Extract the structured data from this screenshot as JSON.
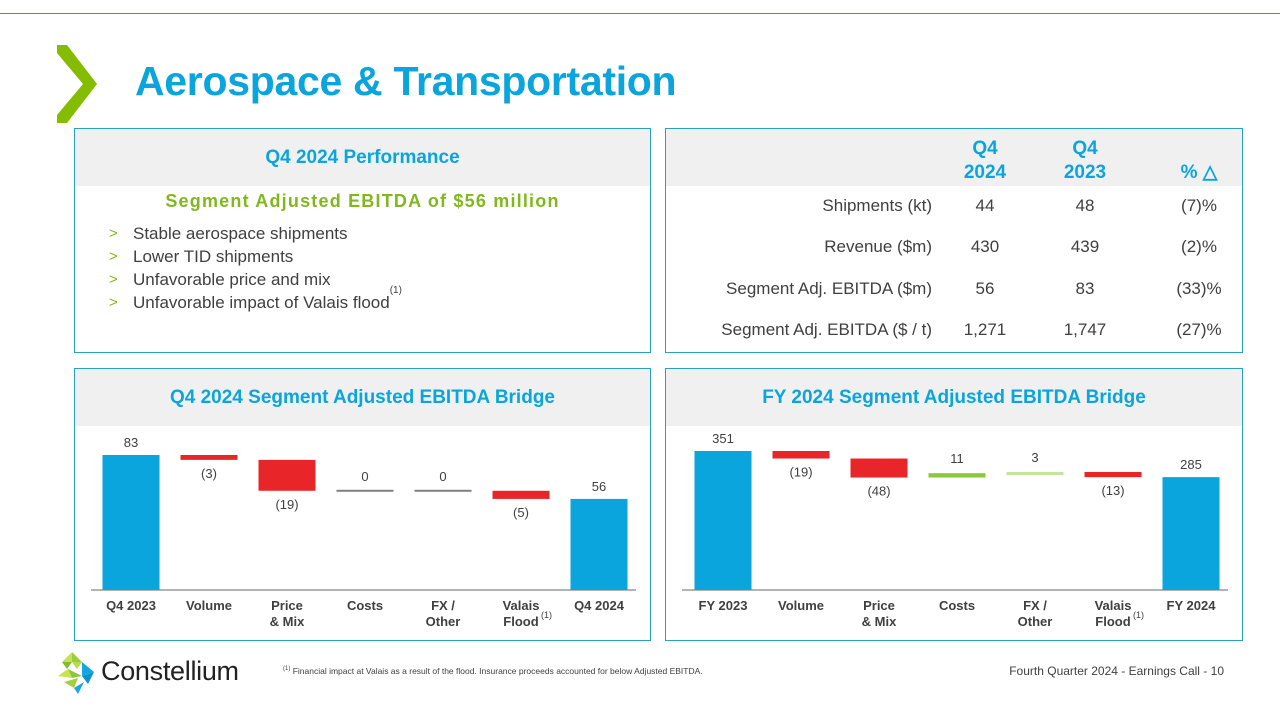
{
  "title": "Aerospace & Transportation",
  "colors": {
    "accent_blue": "#0aa5dc",
    "accent_green": "#80b81e",
    "negative_red": "#e8262a",
    "positive_green": "#8cc63e",
    "positive_light_green": "#c4e59e",
    "zero_gray": "#808080",
    "panel_border": "#2aa0c4"
  },
  "performance": {
    "header": "Q4 2024 Performance",
    "subheading": "Segment Adjusted EBITDA of $56 million",
    "bullets": [
      {
        "text": "Stable aerospace shipments",
        "sup": ""
      },
      {
        "text": "Lower TID shipments",
        "sup": ""
      },
      {
        "text": "Unfavorable price and mix",
        "sup": ""
      },
      {
        "text": "Unfavorable impact of Valais flood",
        "sup": "(1)"
      }
    ],
    "bullet_icon": ">"
  },
  "kpi_table": {
    "columns": [
      {
        "line1": "Q4",
        "line2": "2024"
      },
      {
        "line1": "Q4",
        "line2": "2023"
      },
      {
        "line1": "",
        "line2": "% △"
      }
    ],
    "rows": [
      {
        "label": "Shipments (kt)",
        "q4_2024": "44",
        "q4_2023": "48",
        "pct": "(7)%"
      },
      {
        "label": "Revenue ($m)",
        "q4_2024": "430",
        "q4_2023": "439",
        "pct": "(2)%"
      },
      {
        "label": "Segment Adj. EBITDA  ($m)",
        "q4_2024": "56",
        "q4_2023": "83",
        "pct": "(33)%"
      },
      {
        "label": "Segment Adj. EBITDA ($ / t)",
        "q4_2024": "1,271",
        "q4_2023": "1,747",
        "pct": "(27)%"
      }
    ]
  },
  "chart_data": [
    {
      "type": "bar",
      "subtype": "waterfall",
      "title": "Q4 2024 Segment Adjusted EBITDA Bridge",
      "categories": [
        {
          "line1": "Q4 2023",
          "line2": "",
          "sup": ""
        },
        {
          "line1": "Volume",
          "line2": "",
          "sup": ""
        },
        {
          "line1": "Price",
          "line2": "& Mix",
          "sup": ""
        },
        {
          "line1": "Costs",
          "line2": "",
          "sup": ""
        },
        {
          "line1": "FX /",
          "line2": "Other",
          "sup": ""
        },
        {
          "line1": "Valais",
          "line2": "Flood",
          "sup": "(1)"
        },
        {
          "line1": "Q4 2024",
          "line2": "",
          "sup": ""
        }
      ],
      "values": [
        83,
        -3,
        -19,
        0,
        0,
        -5,
        56
      ],
      "kinds": [
        "total",
        "delta",
        "delta",
        "delta",
        "delta",
        "delta",
        "total"
      ],
      "labels": [
        "83",
        "(3)",
        "(19)",
        "0",
        "0",
        "(5)",
        "56"
      ],
      "ylim": [
        0,
        83
      ],
      "xlabel": "",
      "ylabel": "",
      "grid": false,
      "legend": "none"
    },
    {
      "type": "bar",
      "subtype": "waterfall",
      "title": "FY 2024 Segment Adjusted EBITDA Bridge",
      "categories": [
        {
          "line1": "FY 2023",
          "line2": "",
          "sup": ""
        },
        {
          "line1": "Volume",
          "line2": "",
          "sup": ""
        },
        {
          "line1": "Price",
          "line2": "& Mix",
          "sup": ""
        },
        {
          "line1": "Costs",
          "line2": "",
          "sup": ""
        },
        {
          "line1": "FX /",
          "line2": "Other",
          "sup": ""
        },
        {
          "line1": "Valais",
          "line2": "Flood",
          "sup": "(1)"
        },
        {
          "line1": "FY 2024",
          "line2": "",
          "sup": ""
        }
      ],
      "values": [
        351,
        -19,
        -48,
        11,
        3,
        -13,
        285
      ],
      "kinds": [
        "total",
        "delta",
        "delta",
        "delta",
        "delta",
        "delta",
        "total"
      ],
      "labels": [
        "351",
        "(19)",
        "(48)",
        "11",
        "3",
        "(13)",
        "285"
      ],
      "ylim": [
        0,
        351
      ],
      "xlabel": "",
      "ylabel": "",
      "grid": false,
      "legend": "none"
    }
  ],
  "footer": {
    "company": "Constellium",
    "footnote_marker": "(1)",
    "footnote": " Financial impact at Valais as a result of the flood. Insurance proceeds accounted for below Adjusted EBITDA.",
    "page_info": "Fourth Quarter 2024 -  Earnings Call - 10"
  }
}
